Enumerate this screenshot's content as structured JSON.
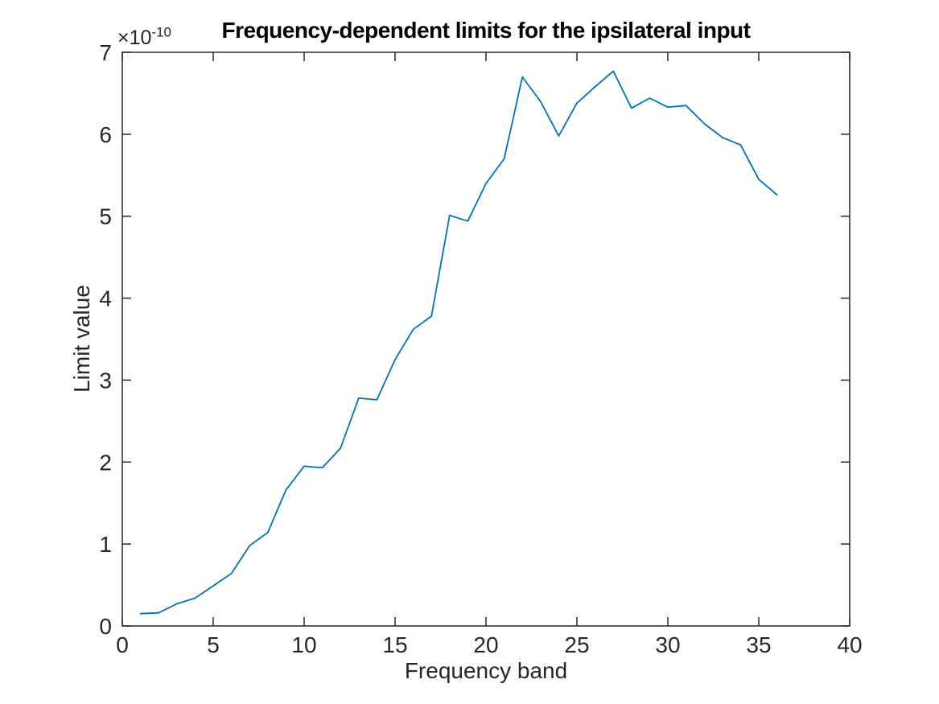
{
  "chart_data": {
    "type": "line",
    "title": "Frequency-dependent limits for the ipsilateral input",
    "xlabel": "Frequency band",
    "ylabel": "Limit value",
    "y_offset": {
      "base": "×10",
      "exponent": "-10"
    },
    "y_unit_scale": "1e-10",
    "x": [
      1,
      2,
      3,
      4,
      5,
      6,
      7,
      8,
      9,
      10,
      11,
      12,
      13,
      14,
      15,
      16,
      17,
      18,
      19,
      20,
      21,
      22,
      23,
      24,
      25,
      26,
      27,
      28,
      29,
      30,
      31,
      32,
      33,
      34,
      35,
      36
    ],
    "values": [
      0.15,
      0.16,
      0.27,
      0.34,
      0.49,
      0.64,
      0.98,
      1.14,
      1.66,
      1.95,
      1.93,
      2.17,
      2.78,
      2.76,
      3.25,
      3.62,
      3.78,
      5.01,
      4.94,
      5.4,
      5.7,
      6.7,
      6.4,
      5.98,
      6.38,
      6.58,
      6.77,
      6.32,
      6.44,
      6.33,
      6.35,
      6.13,
      5.96,
      5.87,
      5.45,
      5.26
    ],
    "xlim": [
      0,
      40
    ],
    "ylim": [
      0,
      7
    ],
    "xticks": [
      0,
      5,
      10,
      15,
      20,
      25,
      30,
      35,
      40
    ],
    "yticks": [
      0,
      1,
      2,
      3,
      4,
      5,
      6,
      7
    ],
    "grid": false,
    "legend_position": "none",
    "box": true,
    "tick_direction": "in",
    "line_color": "#0072BD",
    "axis_color": "#262626",
    "background": "#ffffff"
  }
}
